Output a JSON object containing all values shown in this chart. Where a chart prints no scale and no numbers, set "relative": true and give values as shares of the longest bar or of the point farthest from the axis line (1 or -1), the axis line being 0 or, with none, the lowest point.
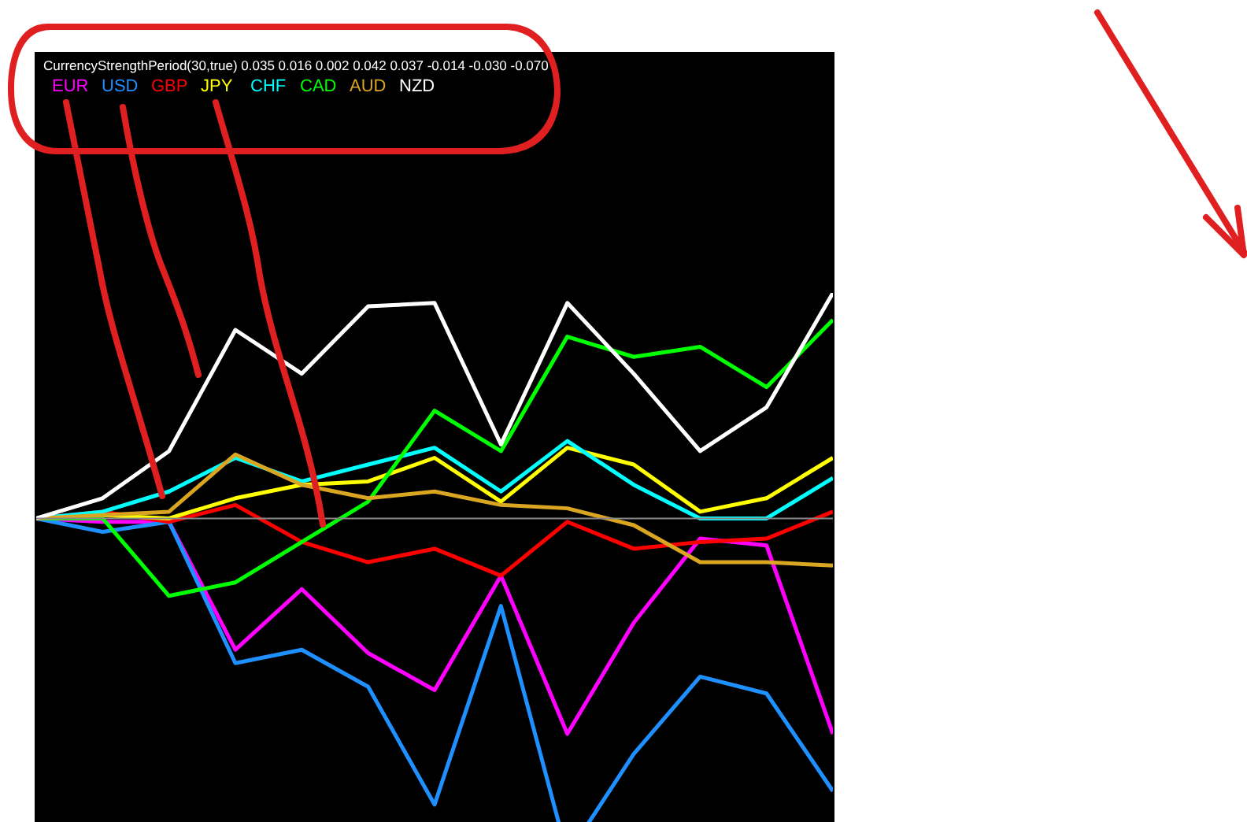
{
  "chart_data": {
    "type": "line",
    "title": "CurrencyStrengthPeriod(30,true) 0.035 0.016 0.002 0.042 0.037 -0.014 -0.030 -0.070",
    "relative": true,
    "categories": [
      null,
      null,
      null,
      null,
      null,
      null,
      null,
      null,
      null,
      null,
      null,
      null,
      null
    ],
    "series": [
      {
        "name": "EUR",
        "color": "#ff00ff",
        "values": [
          0,
          -0.01,
          -0.01,
          -0.39,
          -0.21,
          -0.4,
          -0.51,
          -0.17,
          -0.64,
          -0.31,
          -0.06,
          -0.08,
          -0.64
        ]
      },
      {
        "name": "USD",
        "color": "#1e90ff",
        "values": [
          0,
          -0.04,
          -0.01,
          -0.43,
          -0.39,
          -0.5,
          -0.85,
          -0.26,
          -1,
          -0.7,
          -0.47,
          -0.52,
          -0.81
        ]
      },
      {
        "name": "GBP",
        "color": "#ff0000",
        "values": [
          0,
          0.02,
          -0.01,
          0.04,
          -0.07,
          -0.13,
          -0.09,
          -0.17,
          -0.01,
          -0.09,
          -0.07,
          -0.06,
          0.02
        ]
      },
      {
        "name": "JPY",
        "color": "#ffff00",
        "values": [
          0,
          0.01,
          0,
          0.06,
          0.1,
          0.11,
          0.18,
          0.05,
          0.21,
          0.16,
          0.02,
          0.06,
          0.18
        ]
      },
      {
        "name": "CHF",
        "color": "#00ffff",
        "values": [
          0,
          0.02,
          0.08,
          0.18,
          0.11,
          0.16,
          0.21,
          0.08,
          0.23,
          0.1,
          0,
          0,
          0.12
        ]
      },
      {
        "name": "CAD",
        "color": "#00ff00",
        "values": [
          0,
          0,
          -0.23,
          -0.19,
          -0.07,
          0.05,
          0.32,
          0.2,
          0.54,
          0.48,
          0.51,
          0.39,
          0.59
        ]
      },
      {
        "name": "AUD",
        "color": "#daa520",
        "values": [
          0,
          0.01,
          0.02,
          0.19,
          0.1,
          0.06,
          0.08,
          0.04,
          0.03,
          -0.02,
          -0.13,
          -0.13,
          -0.14
        ]
      },
      {
        "name": "NZD",
        "color": "#ffffff",
        "values": [
          0,
          0.06,
          0.2,
          0.56,
          0.43,
          0.63,
          0.64,
          0.22,
          0.64,
          0.43,
          0.2,
          0.33,
          0.67
        ]
      }
    ]
  }
}
